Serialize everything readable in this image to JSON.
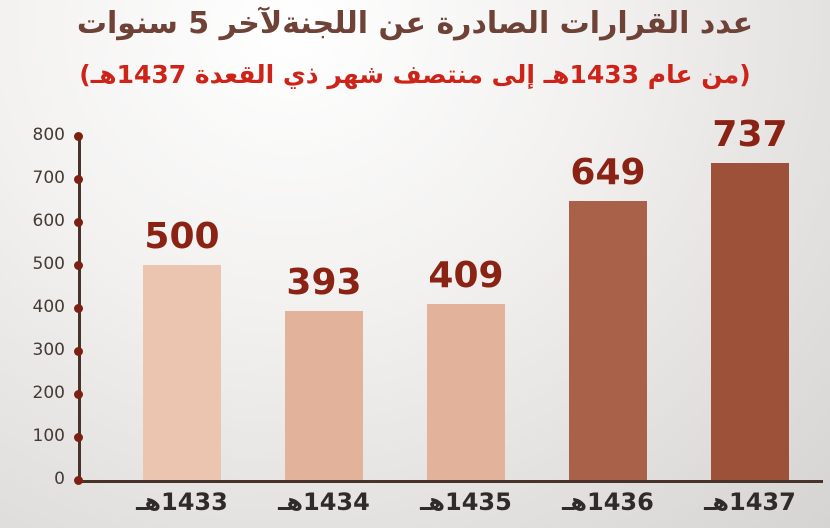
{
  "chart_data": {
    "type": "bar",
    "title": "عدد القرارات الصادرة عن اللجنةلآخر 5 سنوات",
    "subtitle": "(من عام 1433هـ إلى منتصف شهر ذي القعدة  1437هـ)",
    "categories": [
      "1433هـ",
      "1434هـ",
      "1435هـ",
      "1436هـ",
      "1437هـ"
    ],
    "values": [
      500,
      393,
      409,
      649,
      737
    ],
    "bar_colors": [
      "#ebc5b0",
      "#e3b29a",
      "#e3b29a",
      "#a96249",
      "#9c5138"
    ],
    "value_label_color": "#8b2315",
    "tick_dot_color": "#7c2014",
    "xlabel": "",
    "ylabel": "",
    "ylim": [
      0,
      800
    ],
    "y_ticks": [
      0,
      100,
      200,
      300,
      400,
      500,
      600,
      700,
      800
    ],
    "grid": false,
    "legend": false
  }
}
